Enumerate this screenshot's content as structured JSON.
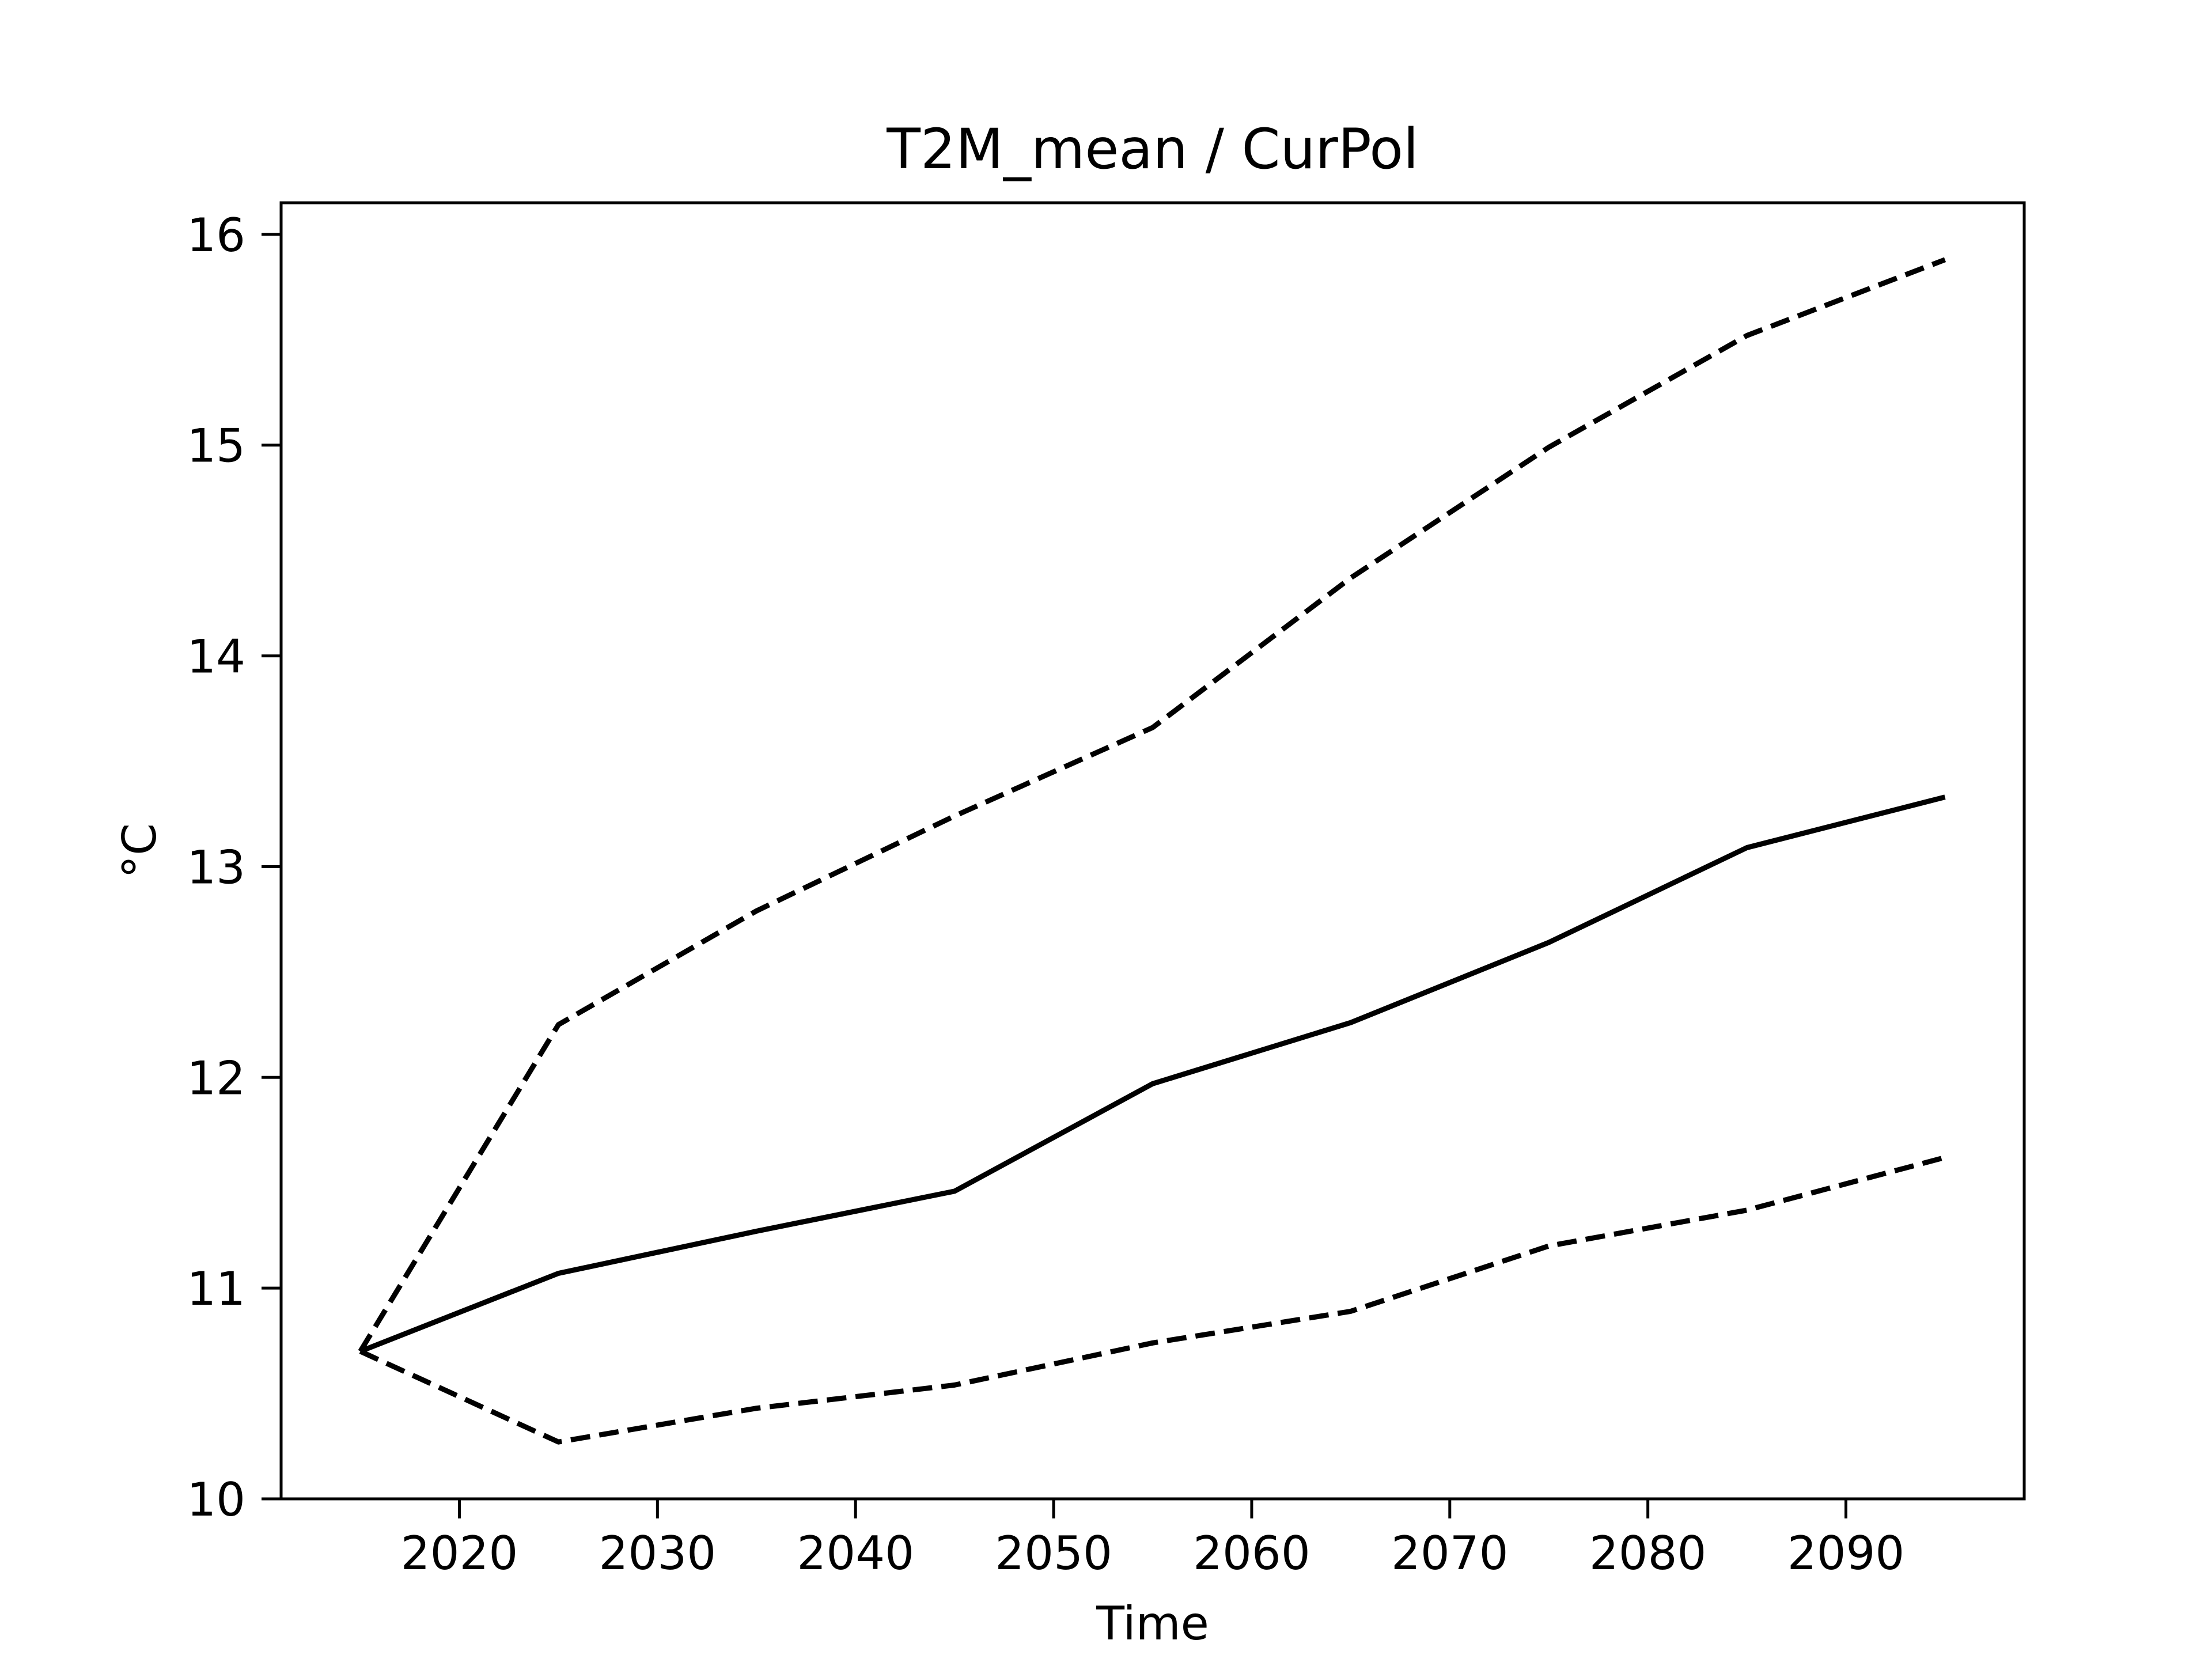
{
  "chart_data": {
    "type": "line",
    "title": "T2M_mean / CurPol",
    "xlabel": "Time",
    "ylabel": "°C",
    "xlim": [
      2011,
      2099
    ],
    "ylim": [
      10,
      16.15
    ],
    "x_ticks": [
      2020,
      2030,
      2040,
      2050,
      2060,
      2070,
      2080,
      2090
    ],
    "y_ticks": [
      10,
      11,
      12,
      13,
      14,
      15,
      16
    ],
    "grid": false,
    "legend": "none",
    "x": [
      2015,
      2025,
      2035,
      2045,
      2055,
      2065,
      2075,
      2085,
      2095
    ],
    "series": [
      {
        "style": "solid",
        "color": "#000000",
        "values": [
          10.7,
          11.07,
          11.27,
          11.46,
          11.97,
          12.26,
          12.64,
          13.09,
          13.33
        ]
      },
      {
        "style": "dashed",
        "color": "#000000",
        "values": [
          10.7,
          12.25,
          12.79,
          13.24,
          13.66,
          14.37,
          14.99,
          15.52,
          15.88
        ]
      },
      {
        "style": "dashed",
        "color": "#000000",
        "values": [
          10.7,
          10.27,
          10.43,
          10.54,
          10.74,
          10.89,
          11.2,
          11.37,
          11.62
        ]
      }
    ]
  }
}
